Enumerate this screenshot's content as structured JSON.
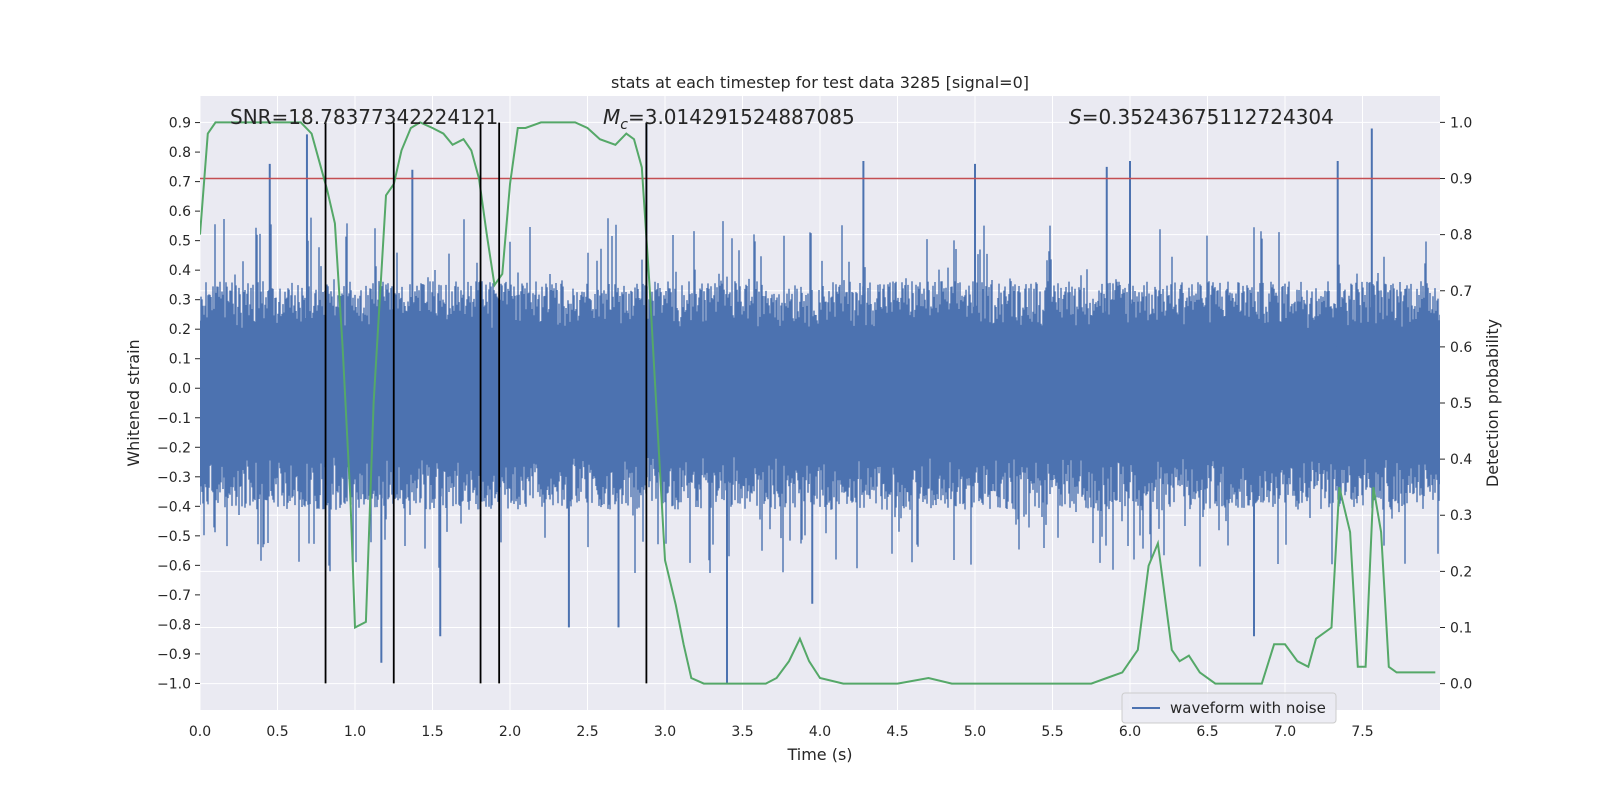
{
  "chart_data": {
    "type": "line",
    "title": "stats at each timestep for test data 3285 [signal=0]",
    "xlabel": "Time (s)",
    "ylabel": "Whitened strain",
    "y2label": "Detection probability",
    "xlim": [
      0.0,
      8.0
    ],
    "ylim": [
      -1.09,
      0.99
    ],
    "y2lim": [
      -0.047,
      1.047
    ],
    "xticks": [
      "0.0",
      "0.5",
      "1.0",
      "1.5",
      "2.0",
      "2.5",
      "3.0",
      "3.5",
      "4.0",
      "4.5",
      "5.0",
      "5.5",
      "6.0",
      "6.5",
      "7.0",
      "7.5"
    ],
    "yticks": [
      "0.9",
      "0.8",
      "0.7",
      "0.6",
      "0.5",
      "0.4",
      "0.3",
      "0.2",
      "0.1",
      "0.0",
      "−0.1",
      "−0.2",
      "−0.3",
      "−0.4",
      "−0.5",
      "−0.6",
      "−0.7",
      "−0.8",
      "−0.9",
      "−1.0"
    ],
    "y2ticks": [
      "1.0",
      "0.9",
      "0.8",
      "0.7",
      "0.6",
      "0.5",
      "0.4",
      "0.3",
      "0.2",
      "0.1",
      "0.0"
    ],
    "grid": true,
    "legend": {
      "position": "lower-right",
      "entries": [
        "waveform with noise"
      ]
    },
    "annotations": {
      "snr": "SNR=18.78377342224121",
      "mc_symbol": "M",
      "mc_sub": "c",
      "mc_value": "=3.014291524887085",
      "s_symbol": "S",
      "s_value": "=0.35243675112724304"
    },
    "threshold": {
      "y2": 0.9,
      "color": "#c44e52"
    },
    "vertical_lines": {
      "x": [
        0.81,
        1.25,
        1.81,
        1.93,
        2.88
      ],
      "y_range": [
        -1.0,
        0.9
      ]
    },
    "waveform": {
      "name": "waveform with noise",
      "color": "#4c72b0",
      "envelope_typical": [
        -0.42,
        0.37
      ],
      "spikes": [
        [
          0.45,
          0.76
        ],
        [
          0.69,
          0.86
        ],
        [
          1.37,
          0.74
        ],
        [
          2.88,
          0.9
        ],
        [
          3.4,
          -1.0
        ],
        [
          4.28,
          0.77
        ],
        [
          5.0,
          0.76
        ],
        [
          5.85,
          0.75
        ],
        [
          6.0,
          0.77
        ],
        [
          7.34,
          0.77
        ],
        [
          7.56,
          0.88
        ],
        [
          1.17,
          -0.93
        ],
        [
          1.55,
          -0.84
        ],
        [
          2.38,
          -0.81
        ],
        [
          2.7,
          -0.81
        ],
        [
          6.8,
          -0.84
        ],
        [
          3.95,
          -0.73
        ]
      ]
    },
    "detection_probability": {
      "color": "#55a868",
      "x": [
        0.0,
        0.05,
        0.1,
        0.15,
        0.25,
        0.4,
        0.55,
        0.65,
        0.72,
        0.78,
        0.82,
        0.87,
        0.92,
        0.97,
        1.0,
        1.07,
        1.12,
        1.2,
        1.25,
        1.3,
        1.36,
        1.42,
        1.5,
        1.57,
        1.63,
        1.7,
        1.75,
        1.8,
        1.85,
        1.9,
        1.95,
        2.0,
        2.05,
        2.1,
        2.2,
        2.3,
        2.42,
        2.5,
        2.58,
        2.68,
        2.75,
        2.8,
        2.85,
        2.9,
        3.0,
        3.07,
        3.12,
        3.17,
        3.25,
        3.35,
        3.5,
        3.65,
        3.72,
        3.8,
        3.87,
        3.93,
        4.0,
        4.15,
        4.3,
        4.5,
        4.7,
        4.85,
        5.0,
        5.2,
        5.5,
        5.75,
        5.85,
        5.95,
        6.0,
        6.05,
        6.12,
        6.18,
        6.27,
        6.32,
        6.38,
        6.45,
        6.55,
        6.7,
        6.85,
        6.93,
        7.0,
        7.08,
        7.15,
        7.2,
        7.3,
        7.35,
        7.42,
        7.47,
        7.52,
        7.57,
        7.62,
        7.67,
        7.72,
        7.77,
        7.82,
        7.97
      ],
      "y": [
        0.8,
        0.98,
        1.0,
        1.0,
        1.0,
        1.0,
        1.0,
        1.0,
        0.98,
        0.92,
        0.88,
        0.82,
        0.6,
        0.33,
        0.1,
        0.11,
        0.5,
        0.87,
        0.89,
        0.95,
        0.99,
        1.0,
        0.99,
        0.98,
        0.96,
        0.97,
        0.95,
        0.9,
        0.8,
        0.71,
        0.73,
        0.89,
        0.99,
        0.99,
        1.0,
        1.0,
        1.0,
        0.99,
        0.97,
        0.96,
        0.98,
        0.97,
        0.92,
        0.71,
        0.22,
        0.14,
        0.07,
        0.01,
        0.0,
        0.0,
        0.0,
        0.0,
        0.01,
        0.04,
        0.08,
        0.04,
        0.01,
        0.0,
        0.0,
        0.0,
        0.01,
        0.0,
        0.0,
        0.0,
        0.0,
        0.0,
        0.01,
        0.02,
        0.04,
        0.06,
        0.21,
        0.25,
        0.06,
        0.04,
        0.05,
        0.02,
        0.0,
        0.0,
        0.0,
        0.07,
        0.07,
        0.04,
        0.03,
        0.08,
        0.1,
        0.35,
        0.27,
        0.03,
        0.03,
        0.35,
        0.27,
        0.03,
        0.02,
        0.02,
        0.02,
        0.02
      ]
    }
  }
}
